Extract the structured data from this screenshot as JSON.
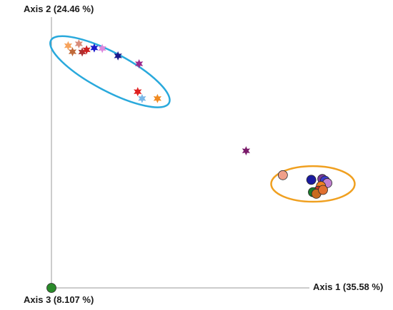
{
  "chart_data": {
    "type": "scatter",
    "title": "",
    "axis_labels": {
      "axis1": "Axis 1 (35.58 %)",
      "axis2": "Axis 2 (24.46 %)",
      "axis3": "Axis 3 (8.107 %)"
    },
    "grid": false,
    "legend": "none",
    "colors": {
      "axis_line": "#9a9a9a",
      "ellipse_stars": "#29a9dc",
      "ellipse_circles": "#f0a020"
    },
    "series": [
      {
        "marker": "star",
        "points": [
          {
            "x": 0.05,
            "y": 0.885,
            "color": "#f7a35c"
          },
          {
            "x": 0.082,
            "y": 0.892,
            "color": "#d98c7a"
          },
          {
            "x": 0.063,
            "y": 0.863,
            "color": "#c06a3a"
          },
          {
            "x": 0.092,
            "y": 0.862,
            "color": "#b03030"
          },
          {
            "x": 0.105,
            "y": 0.87,
            "color": "#cc2222"
          },
          {
            "x": 0.128,
            "y": 0.877,
            "color": "#1a1acc"
          },
          {
            "x": 0.152,
            "y": 0.875,
            "color": "#dd88dd"
          },
          {
            "x": 0.199,
            "y": 0.848,
            "color": "#1a1a8c"
          },
          {
            "x": 0.262,
            "y": 0.819,
            "color": "#9a2a8c"
          },
          {
            "x": 0.258,
            "y": 0.717,
            "color": "#e02020"
          },
          {
            "x": 0.271,
            "y": 0.692,
            "color": "#7ab8e8"
          },
          {
            "x": 0.317,
            "y": 0.692,
            "color": "#f08a20"
          },
          {
            "x": 0.582,
            "y": 0.501,
            "color": "#7a1a6a"
          }
        ]
      },
      {
        "marker": "circle",
        "points": [
          {
            "x": 0.692,
            "y": 0.412,
            "color": "#f0a08a"
          },
          {
            "x": 0.777,
            "y": 0.395,
            "color": "#1a1aa0"
          },
          {
            "x": 0.81,
            "y": 0.398,
            "color": "#7a3a9a"
          },
          {
            "x": 0.818,
            "y": 0.392,
            "color": "#3a3acc"
          },
          {
            "x": 0.825,
            "y": 0.383,
            "color": "#c080d0"
          },
          {
            "x": 0.806,
            "y": 0.372,
            "color": "#f08020"
          },
          {
            "x": 0.798,
            "y": 0.355,
            "color": "#cc3322"
          },
          {
            "x": 0.782,
            "y": 0.35,
            "color": "#1a7a2a"
          },
          {
            "x": 0.792,
            "y": 0.344,
            "color": "#c86a20"
          },
          {
            "x": 0.812,
            "y": 0.358,
            "color": "#e07030"
          },
          {
            "x": 0.0,
            "y": 0.0,
            "color": "#2a8a2a"
          }
        ]
      }
    ],
    "ellipses": [
      {
        "cx": 0.175,
        "cy": 0.79,
        "rx": 0.2,
        "ry": 0.07,
        "angle": 28,
        "color": "#29a9dc"
      },
      {
        "cx": 0.782,
        "cy": 0.38,
        "rx": 0.125,
        "ry": 0.065,
        "angle": 0,
        "color": "#f0a020"
      }
    ]
  }
}
